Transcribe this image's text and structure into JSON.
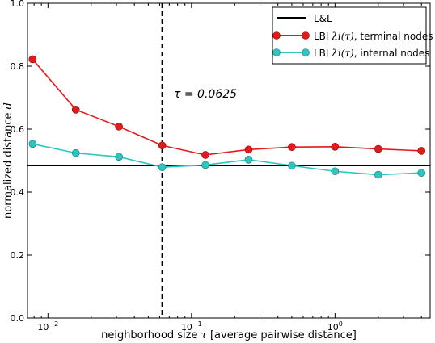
{
  "chart_data": {
    "type": "line",
    "xscale": "log",
    "xlim": [
      0.0072,
      4.6
    ],
    "ylim": [
      0.0,
      1.0
    ],
    "xlabel": "neighborhood size τ [average pairwise distance]",
    "ylabel": "normalized distance d",
    "x_ticks": [
      {
        "value": 0.01,
        "label": "10",
        "exp": "−2"
      },
      {
        "value": 0.1,
        "label": "10",
        "exp": "−1"
      },
      {
        "value": 1,
        "label": "10",
        "exp": "0"
      }
    ],
    "y_ticks": [
      {
        "value": 0.0,
        "label": "0.0"
      },
      {
        "value": 0.2,
        "label": "0.2"
      },
      {
        "value": 0.4,
        "label": "0.4"
      },
      {
        "value": 0.6,
        "label": "0.6"
      },
      {
        "value": 0.8,
        "label": "0.8"
      },
      {
        "value": 1.0,
        "label": "1.0"
      }
    ],
    "grid": false,
    "legend_position": "top-right",
    "hline": {
      "name": "L&L",
      "y": 0.484,
      "color": "#000000"
    },
    "vline": {
      "x": 0.0625,
      "style": "dashed",
      "label": "τ = 0.0625"
    },
    "x": [
      0.0078125,
      0.015625,
      0.03125,
      0.0625,
      0.125,
      0.25,
      0.5,
      1,
      2,
      4
    ],
    "series": [
      {
        "name": "LBI λi(τ), terminal nodes",
        "color": "#e31a1c",
        "values": [
          0.822,
          0.662,
          0.608,
          0.548,
          0.518,
          0.535,
          0.543,
          0.544,
          0.537,
          0.531
        ]
      },
      {
        "name": "LBI λi(τ), internal nodes",
        "color": "#2ec4c0",
        "values": [
          0.553,
          0.524,
          0.512,
          0.479,
          0.486,
          0.503,
          0.484,
          0.466,
          0.455,
          0.461
        ]
      }
    ]
  },
  "legend": {
    "ll_label": "L&L",
    "terminal_prefix": "LBI ",
    "terminal_math": "λi(τ)",
    "terminal_suffix": ", terminal nodes",
    "internal_prefix": "LBI ",
    "internal_math": "λi(τ)",
    "internal_suffix": ", internal nodes"
  },
  "annotation": {
    "tau_label": "τ = 0.0625"
  },
  "axes": {
    "xlabel_prefix": "neighborhood size ",
    "xlabel_math": "τ",
    "xlabel_suffix": " [average pairwise distance]",
    "ylabel_prefix": "normalized distance ",
    "ylabel_math": "d"
  }
}
